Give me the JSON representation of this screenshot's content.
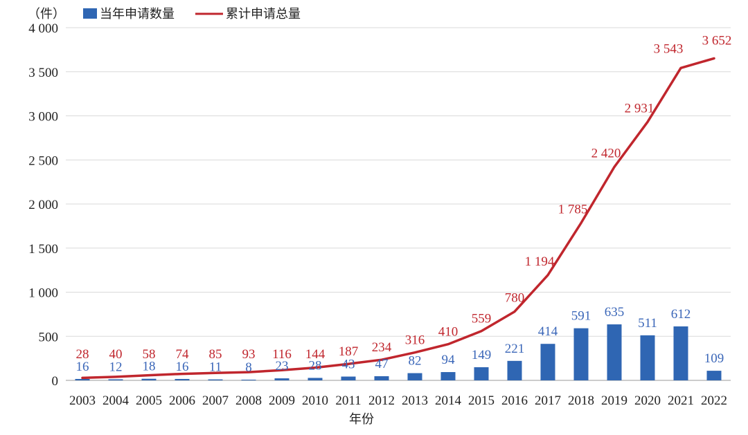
{
  "chart_data": {
    "type": "bar+line",
    "y_unit": "（件）",
    "xlabel": "年份",
    "ylim": [
      0,
      4000
    ],
    "ytick_values": [
      0,
      500,
      1000,
      1500,
      2000,
      2500,
      3000,
      3500,
      4000
    ],
    "ytick_labels": [
      "0",
      "500",
      "1 000",
      "1 500",
      "2 000",
      "2 500",
      "3 000",
      "3 500",
      "4 000"
    ],
    "categories": [
      "2003",
      "2004",
      "2005",
      "2006",
      "2007",
      "2008",
      "2009",
      "2010",
      "2011",
      "2012",
      "2013",
      "2014",
      "2015",
      "2016",
      "2017",
      "2018",
      "2019",
      "2020",
      "2021",
      "2022"
    ],
    "series": [
      {
        "name": "当年申请数量",
        "type": "bar",
        "color": "#2f66b3",
        "label_color": "#3a66b8",
        "values": [
          16,
          12,
          18,
          16,
          11,
          8,
          23,
          28,
          43,
          47,
          82,
          94,
          149,
          221,
          414,
          591,
          635,
          511,
          612,
          109
        ],
        "labels": [
          "16",
          "12",
          "18",
          "16",
          "11",
          "8",
          "23",
          "28",
          "43",
          "47",
          "82",
          "94",
          "149",
          "221",
          "414",
          "591",
          "635",
          "511",
          "612",
          "109"
        ]
      },
      {
        "name": "累计申请总量",
        "type": "line",
        "color": "#c0262d",
        "label_color": "#c0262d",
        "values": [
          28,
          40,
          58,
          74,
          85,
          93,
          116,
          144,
          187,
          234,
          316,
          410,
          559,
          780,
          1194,
          1785,
          2420,
          2931,
          3543,
          3652
        ],
        "labels": [
          "28",
          "40",
          "58",
          "74",
          "85",
          "93",
          "116",
          "144",
          "187",
          "234",
          "316",
          "410",
          "559",
          "780",
          "1 194",
          "1 785",
          "2 420",
          "2 931",
          "3 543",
          "3 652"
        ]
      }
    ]
  }
}
